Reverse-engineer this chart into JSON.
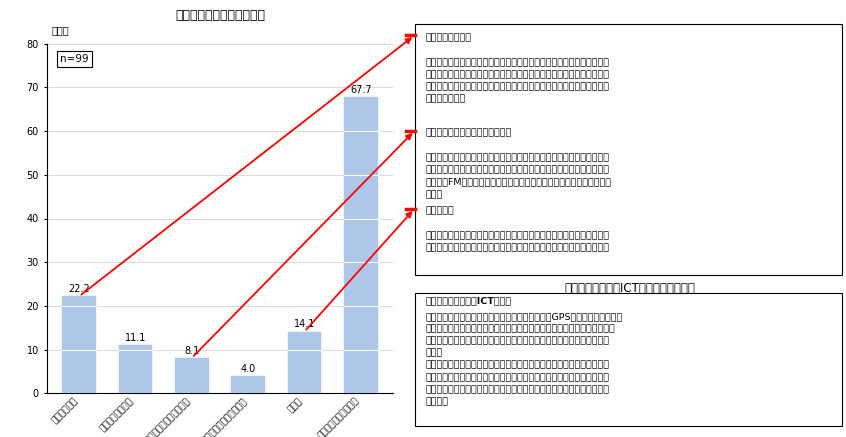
{
  "title": "高齢者配慮の工夫と具体例",
  "subtitle2": "高齢者に望ましいICT環境に対する意見",
  "n_label": "n=99",
  "categories": [
    "紙による配布",
    "読み聞かせの実施",
    "複数の手段を使った情報提供",
    "ICT機器から他の手段への変換",
    "その他",
    "特に工夫はしていない"
  ],
  "values": [
    22.2,
    11.1,
    8.1,
    4.0,
    14.1,
    67.7
  ],
  "bar_color": "#aec6e8",
  "ylim": [
    0,
    80
  ],
  "yticks": [
    0,
    10,
    20,
    30,
    40,
    50,
    60,
    70,
    80
  ],
  "ylabel": "（％）",
  "box1_content": "【紙による配布】\n・高齢者の多い避難所では、必ず紙による情報の配布を行った。避難所\n　には情報が入るが、個人で避難する人には全く情報が入らないという\n　苦情がかなりあった。そういう人達には紙で送るのが望ましいという\n　判断である。",
  "box2_content": "【複数の手段を使った情報提供】\n・市外の避難者に広報誌、災害等の参考・関係資料を束ねてメール便で\n　月２回送付している。ホームページでも同じ情報を提供している。さ\n　いがいFMとエリア限定放送サービスと連携して情報発信を行ってい\n　る。",
  "box3_content": "【その他】\n・集会所に、インターネット回線環境を整備してており、そこに健康チ\n　ェック（医師、看護師と相談）ができるテレビ電話を入れてくれた。",
  "bottom_box_content": "【高齢者に望ましいICT環境】\n・高齢者でも扱えるワンタッチボタンのもので、GPS機能がついており、\n「生きてます」ボタンを押して安否を報告できる携帯端末があればよい。\n・デジタルサイネージのような、情報を流しっぱなしのものがあれば良\n　い。\n・タブレット的なものでないといけない。また、文字とかを読み上げて\n　くれるようなタイプでないと、難しいのではないか。必要な情報が強\n　制的にポップアップされるようなものでないと、使われないのではな\n　いか。"
}
